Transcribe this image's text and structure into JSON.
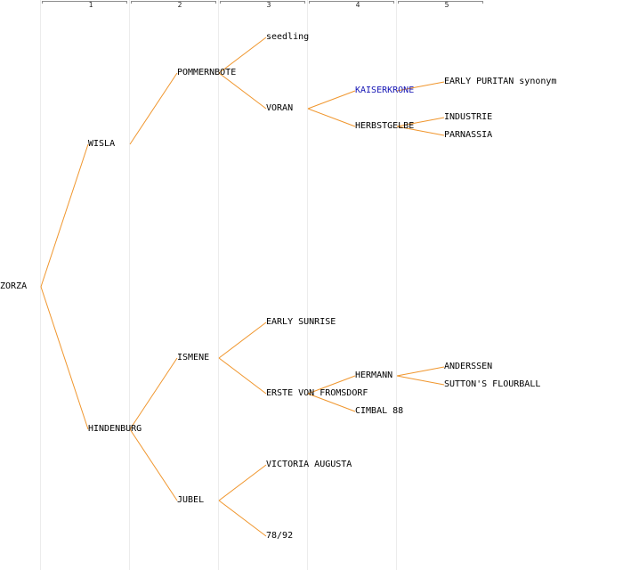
{
  "generation_columns": [
    "1",
    "2",
    "3",
    "4",
    "5"
  ],
  "accent_colors": {
    "link": "#f0962d",
    "highlight": "#1414b4"
  },
  "nodes": {
    "zorza": "ZORZA",
    "wisla": "WISLA",
    "hindenburg": "HINDENBURG",
    "pommernbote": "POMMERNBOTE",
    "ismene": "ISMENE",
    "jubel": "JUBEL",
    "seedling": "seedling",
    "voran": "VORAN",
    "early_sunrise": "EARLY SUNRISE",
    "erste_von_fromsdorf": "ERSTE VON FROMSDORF",
    "victoria_augusta": "VICTORIA AUGUSTA",
    "n78_92": "78/92",
    "kaiserkrone": "KAISERKRONE",
    "herbstgelbe": "HERBSTGELBE",
    "hermann": "HERMANN",
    "cimbal_88": "CIMBAL 88",
    "early_puritan": "EARLY PURITAN synonym",
    "industrie": "INDUSTRIE",
    "parnassia": "PARNASSIA",
    "anderssen": "ANDERSSEN",
    "suttons_flourball": "SUTTON'S FLOURBALL"
  },
  "edges": [
    [
      "zorza",
      "wisla"
    ],
    [
      "zorza",
      "hindenburg"
    ],
    [
      "wisla",
      "pommernbote"
    ],
    [
      "hindenburg",
      "ismene"
    ],
    [
      "hindenburg",
      "jubel"
    ],
    [
      "pommernbote",
      "seedling"
    ],
    [
      "pommernbote",
      "voran"
    ],
    [
      "ismene",
      "early_sunrise"
    ],
    [
      "ismene",
      "erste_von_fromsdorf"
    ],
    [
      "jubel",
      "victoria_augusta"
    ],
    [
      "jubel",
      "n78_92"
    ],
    [
      "voran",
      "kaiserkrone"
    ],
    [
      "voran",
      "herbstgelbe"
    ],
    [
      "erste_von_fromsdorf",
      "hermann"
    ],
    [
      "erste_von_fromsdorf",
      "cimbal_88"
    ],
    [
      "kaiserkrone",
      "early_puritan"
    ],
    [
      "herbstgelbe",
      "industrie"
    ],
    [
      "herbstgelbe",
      "parnassia"
    ],
    [
      "hermann",
      "anderssen"
    ],
    [
      "hermann",
      "suttons_flourball"
    ]
  ]
}
